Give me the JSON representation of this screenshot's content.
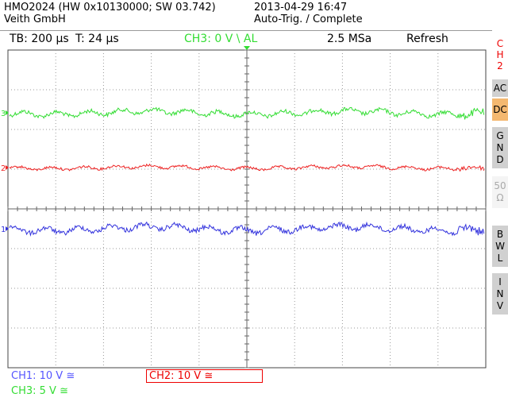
{
  "header": {
    "device": "HMO2024 (HW 0x10130000; SW 03.742)",
    "vendor": "Veith GmbH",
    "datetime": "2013-04-29 16:47",
    "trigger_status": "Auto-Trig. / Complete"
  },
  "status_bar": {
    "timebase": "TB: 200 µs",
    "trigger_time": "T: 24 µs",
    "trigger": "CH3: 0 V \\ AL",
    "sample_rate": "2.5 MSa",
    "mode": "Refresh"
  },
  "side_menu": {
    "channel": [
      "C",
      "H",
      "2"
    ],
    "buttons": [
      [
        "AC"
      ],
      [
        "DC"
      ],
      [
        "G",
        "N",
        "D"
      ],
      [
        "50",
        "Ω"
      ],
      [
        "B",
        "W",
        "L"
      ],
      [
        "I",
        "N",
        "V"
      ]
    ]
  },
  "channel_markers": [
    "3",
    "2",
    "1"
  ],
  "footer": {
    "ch1": "CH1: 10 V ≅",
    "ch2": "CH2: 10 V ≅",
    "ch3": "CH3: 5 V ≅"
  }
}
